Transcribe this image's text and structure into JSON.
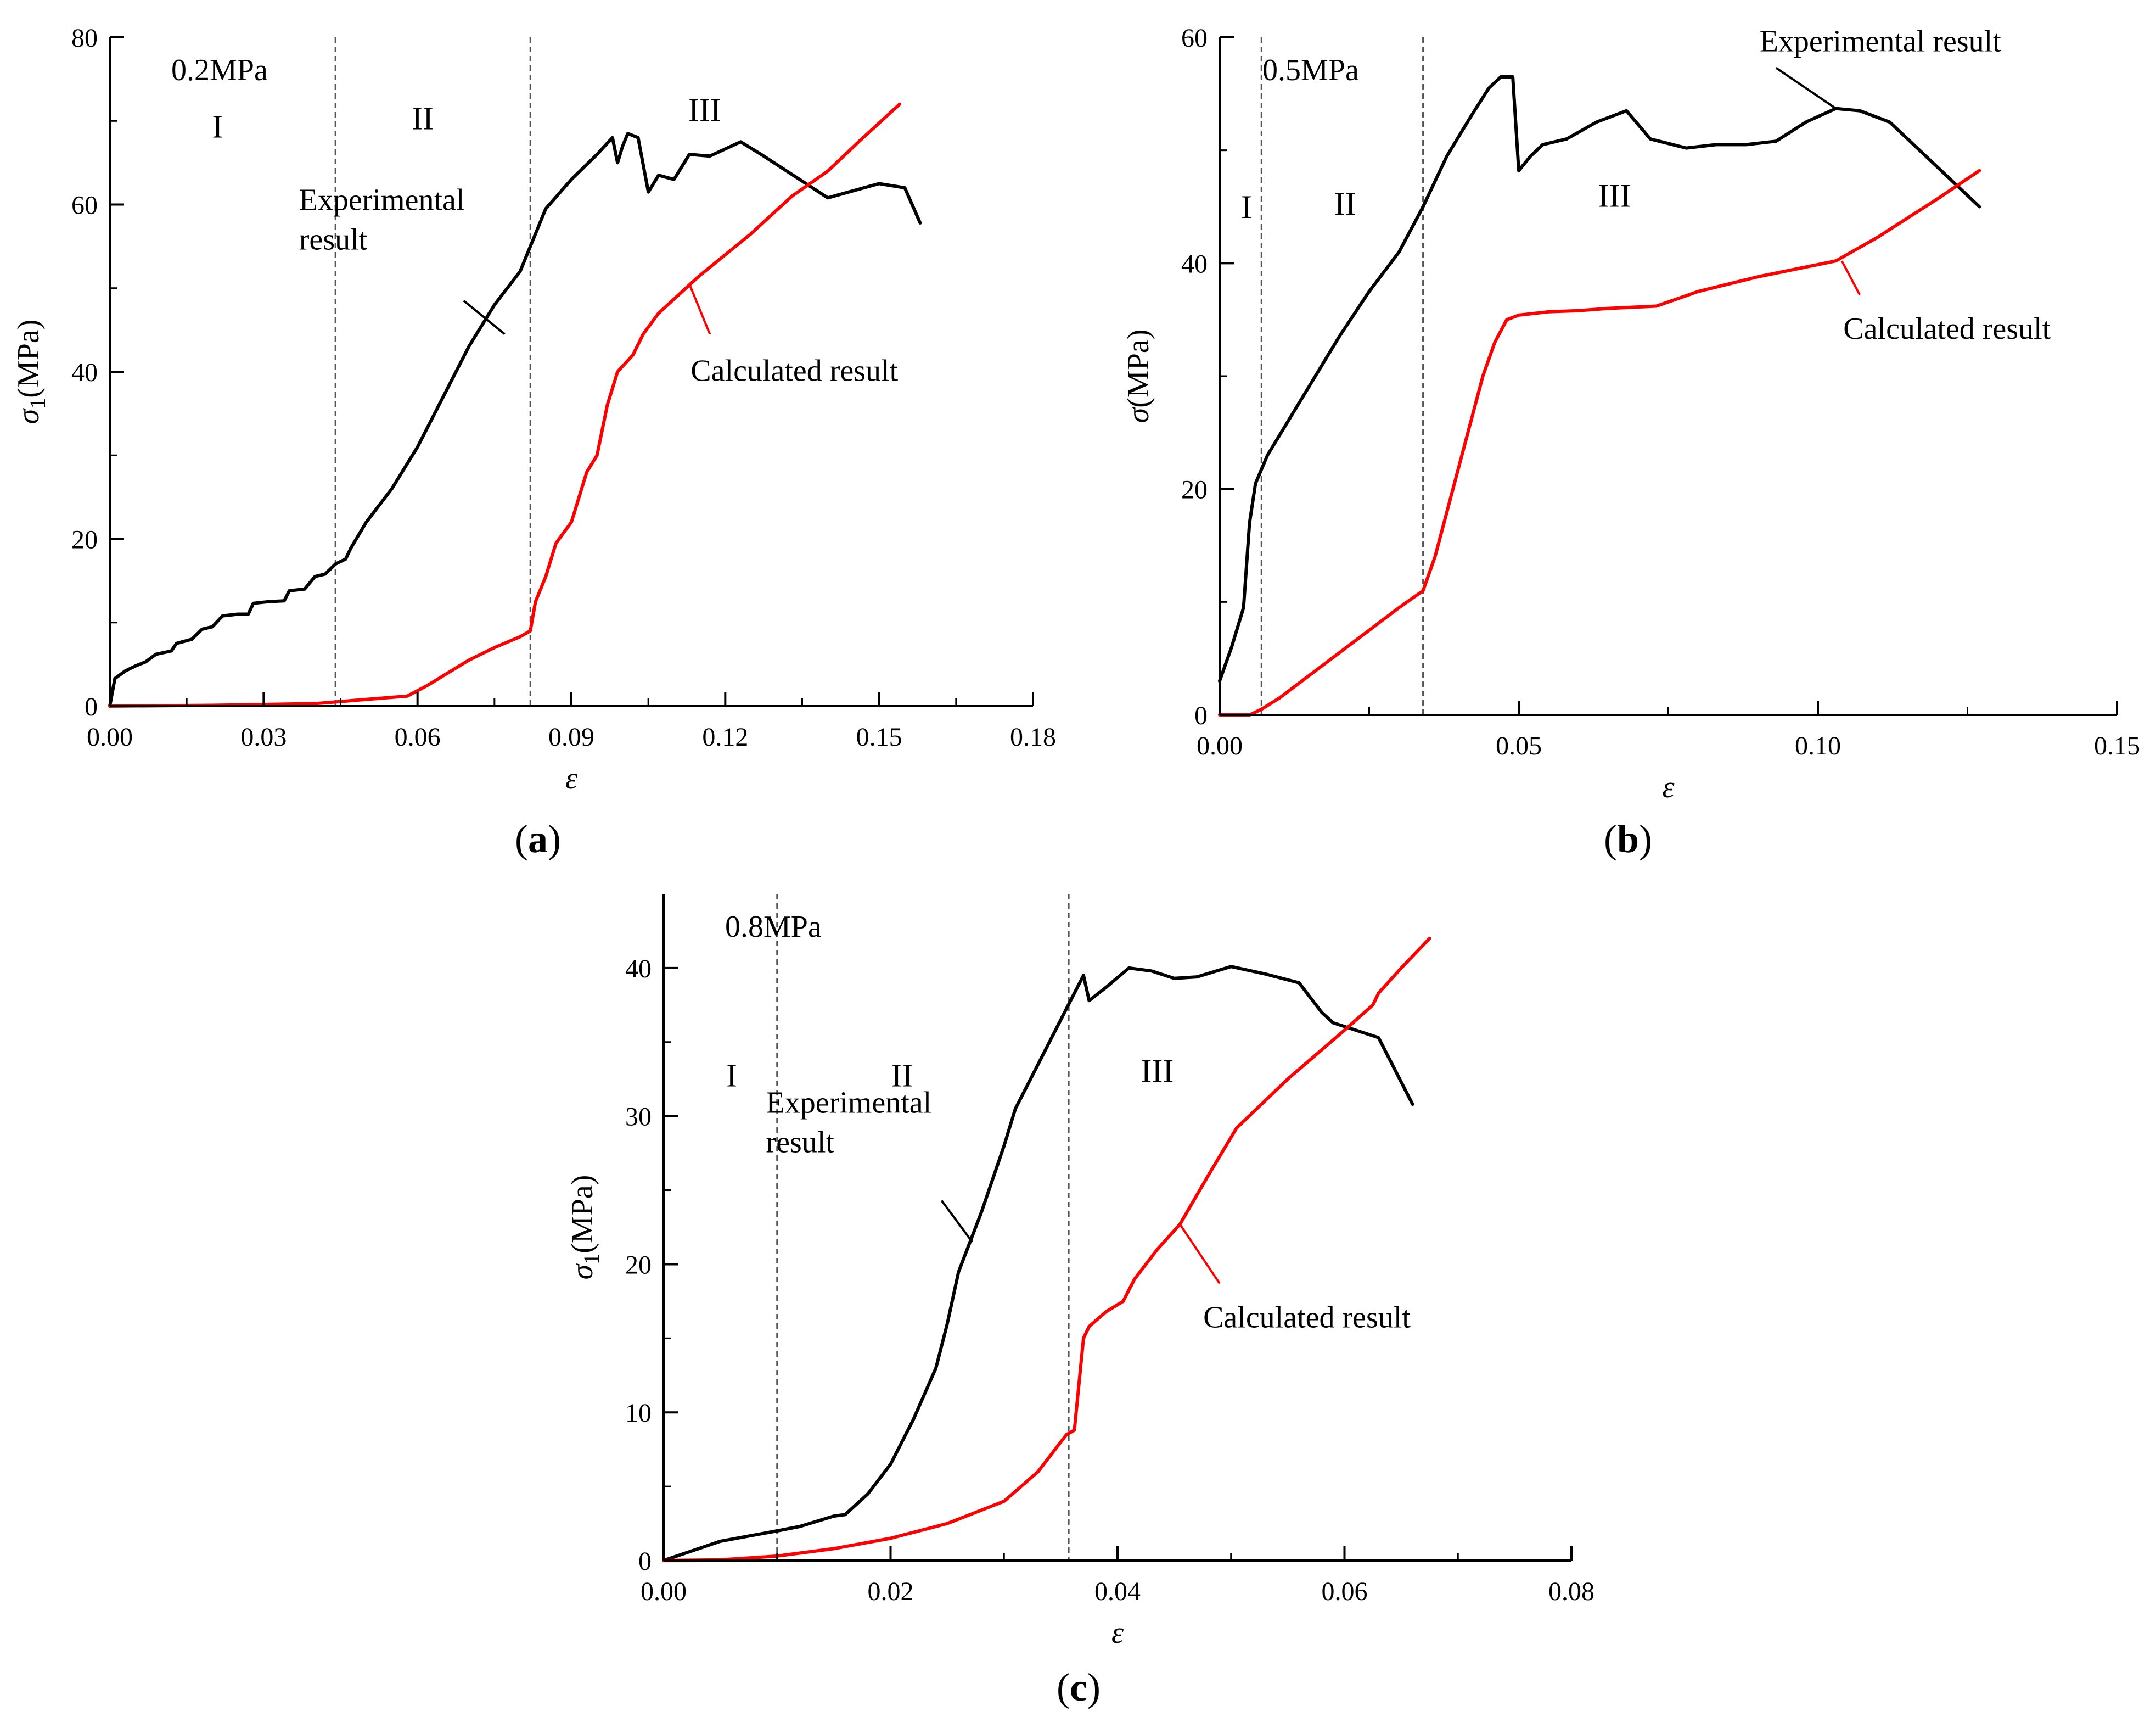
{
  "colors": {
    "experimental": "#000000",
    "calculated": "#ff0000",
    "axis": "#000000",
    "boundary": "#555555"
  },
  "chart_data": [
    {
      "id": "a",
      "type": "line",
      "caption_letter": "a",
      "pressure_label": "0.2MPa",
      "xlabel": "ε",
      "ylabel": {
        "symbol": "σ",
        "subscript": "1",
        "unit": "(MPa)"
      },
      "xlim": [
        0,
        0.18
      ],
      "ylim": [
        0,
        80
      ],
      "xticks": [
        0,
        0.03,
        0.06,
        0.09,
        0.12,
        0.15,
        0.18
      ],
      "xtick_labels": [
        "0.00",
        "0.03",
        "0.06",
        "0.09",
        "0.12",
        "0.15",
        "0.18"
      ],
      "yticks": [
        0,
        20,
        40,
        60,
        80
      ],
      "ytick_labels": [
        "0",
        "20",
        "40",
        "60",
        "80"
      ],
      "region_boundaries": [
        0.044,
        0.082
      ],
      "region_labels": [
        {
          "text": "I",
          "x": 0.021,
          "y": 68
        },
        {
          "text": "II",
          "x": 0.061,
          "y": 69
        },
        {
          "text": "III",
          "x": 0.116,
          "y": 70
        }
      ],
      "series": [
        {
          "name": "Experimental result",
          "color_key": "experimental",
          "points": [
            [
              0,
              0
            ],
            [
              0.001,
              3.3
            ],
            [
              0.003,
              4.2
            ],
            [
              0.005,
              4.8
            ],
            [
              0.007,
              5.3
            ],
            [
              0.009,
              6.2
            ],
            [
              0.012,
              6.6
            ],
            [
              0.013,
              7.5
            ],
            [
              0.016,
              8
            ],
            [
              0.018,
              9.2
            ],
            [
              0.02,
              9.5
            ],
            [
              0.022,
              10.8
            ],
            [
              0.025,
              11
            ],
            [
              0.027,
              11
            ],
            [
              0.028,
              12.3
            ],
            [
              0.031,
              12.5
            ],
            [
              0.034,
              12.6
            ],
            [
              0.035,
              13.8
            ],
            [
              0.038,
              14
            ],
            [
              0.04,
              15.5
            ],
            [
              0.042,
              15.8
            ],
            [
              0.044,
              17
            ],
            [
              0.046,
              17.6
            ],
            [
              0.047,
              18.9
            ],
            [
              0.05,
              22
            ],
            [
              0.055,
              26
            ],
            [
              0.06,
              31
            ],
            [
              0.065,
              37
            ],
            [
              0.07,
              43
            ],
            [
              0.075,
              48
            ],
            [
              0.08,
              52
            ],
            [
              0.085,
              59.5
            ],
            [
              0.09,
              63
            ],
            [
              0.095,
              66
            ],
            [
              0.098,
              68
            ],
            [
              0.099,
              65
            ],
            [
              0.1,
              67
            ],
            [
              0.101,
              68.5
            ],
            [
              0.103,
              68
            ],
            [
              0.105,
              61.5
            ],
            [
              0.107,
              63.5
            ],
            [
              0.11,
              63
            ],
            [
              0.113,
              66
            ],
            [
              0.117,
              65.8
            ],
            [
              0.123,
              67.5
            ],
            [
              0.127,
              66
            ],
            [
              0.132,
              64
            ],
            [
              0.14,
              60.8
            ],
            [
              0.15,
              62.5
            ],
            [
              0.155,
              62
            ],
            [
              0.158,
              57.8
            ]
          ]
        },
        {
          "name": "Calculated result",
          "color_key": "calculated",
          "points": [
            [
              0,
              0
            ],
            [
              0.02,
              0.1
            ],
            [
              0.04,
              0.3
            ],
            [
              0.05,
              0.8
            ],
            [
              0.058,
              1.2
            ],
            [
              0.062,
              2.5
            ],
            [
              0.066,
              4
            ],
            [
              0.07,
              5.5
            ],
            [
              0.075,
              7
            ],
            [
              0.08,
              8.3
            ],
            [
              0.082,
              9
            ],
            [
              0.083,
              12.5
            ],
            [
              0.085,
              15.5
            ],
            [
              0.087,
              19.5
            ],
            [
              0.09,
              22
            ],
            [
              0.093,
              28
            ],
            [
              0.095,
              30
            ],
            [
              0.097,
              36
            ],
            [
              0.099,
              40
            ],
            [
              0.102,
              42
            ],
            [
              0.104,
              44.5
            ],
            [
              0.107,
              47
            ],
            [
              0.115,
              51.5
            ],
            [
              0.125,
              56.5
            ],
            [
              0.133,
              61
            ],
            [
              0.14,
              64
            ],
            [
              0.146,
              67.5
            ],
            [
              0.154,
              72
            ]
          ]
        }
      ],
      "annotations": [
        {
          "lines": [
            "Experimental",
            "result"
          ],
          "target": [
            0.077,
            44.5
          ],
          "anchor": [
            0.069,
            48.5
          ]
        },
        {
          "lines": [
            "Calculated result"
          ],
          "target": [
            0.113,
            50.5
          ],
          "anchor": [
            0.117,
            44.5
          ]
        }
      ]
    },
    {
      "id": "b",
      "type": "line",
      "caption_letter": "b",
      "pressure_label": "0.5MPa",
      "xlabel": "ε",
      "ylabel": {
        "symbol": "σ",
        "subscript": "",
        "unit": "(MPa)"
      },
      "xlim": [
        0,
        0.15
      ],
      "ylim": [
        0,
        60
      ],
      "xticks": [
        0,
        0.05,
        0.1,
        0.15
      ],
      "xtick_labels": [
        "0.00",
        "0.05",
        "0.10",
        "0.15"
      ],
      "yticks": [
        0,
        20,
        40,
        60
      ],
      "ytick_labels": [
        "0",
        "20",
        "40",
        "60"
      ],
      "region_boundaries": [
        0.007,
        0.034
      ],
      "region_labels": [
        {
          "text": "I",
          "x": 0.0045,
          "y": 44
        },
        {
          "text": "II",
          "x": 0.021,
          "y": 44.3
        },
        {
          "text": "III",
          "x": 0.066,
          "y": 45
        }
      ],
      "series": [
        {
          "name": "Experimental result",
          "color_key": "experimental",
          "points": [
            [
              0,
              3
            ],
            [
              0.002,
              6
            ],
            [
              0.004,
              9.5
            ],
            [
              0.005,
              17
            ],
            [
              0.006,
              20.5
            ],
            [
              0.008,
              23
            ],
            [
              0.012,
              26.5
            ],
            [
              0.016,
              30
            ],
            [
              0.02,
              33.5
            ],
            [
              0.025,
              37.5
            ],
            [
              0.03,
              41
            ],
            [
              0.034,
              45
            ],
            [
              0.038,
              49.5
            ],
            [
              0.042,
              53
            ],
            [
              0.045,
              55.5
            ],
            [
              0.047,
              56.5
            ],
            [
              0.049,
              56.5
            ],
            [
              0.05,
              48.2
            ],
            [
              0.052,
              49.5
            ],
            [
              0.054,
              50.5
            ],
            [
              0.058,
              51
            ],
            [
              0.063,
              52.5
            ],
            [
              0.068,
              53.5
            ],
            [
              0.072,
              51
            ],
            [
              0.078,
              50.2
            ],
            [
              0.083,
              50.5
            ],
            [
              0.088,
              50.5
            ],
            [
              0.093,
              50.8
            ],
            [
              0.098,
              52.5
            ],
            [
              0.103,
              53.7
            ],
            [
              0.107,
              53.5
            ],
            [
              0.112,
              52.5
            ],
            [
              0.116,
              50.5
            ],
            [
              0.12,
              48.5
            ],
            [
              0.123,
              47
            ],
            [
              0.127,
              45
            ]
          ]
        },
        {
          "name": "Calculated result",
          "color_key": "calculated",
          "points": [
            [
              0,
              0
            ],
            [
              0.005,
              0
            ],
            [
              0.007,
              0.5
            ],
            [
              0.01,
              1.5
            ],
            [
              0.015,
              3.5
            ],
            [
              0.02,
              5.5
            ],
            [
              0.025,
              7.5
            ],
            [
              0.03,
              9.5
            ],
            [
              0.034,
              11
            ],
            [
              0.036,
              14
            ],
            [
              0.038,
              18
            ],
            [
              0.04,
              22
            ],
            [
              0.042,
              26
            ],
            [
              0.044,
              30
            ],
            [
              0.046,
              33
            ],
            [
              0.048,
              35
            ],
            [
              0.05,
              35.4
            ],
            [
              0.055,
              35.7
            ],
            [
              0.06,
              35.8
            ],
            [
              0.065,
              36
            ],
            [
              0.073,
              36.2
            ],
            [
              0.08,
              37.5
            ],
            [
              0.09,
              38.8
            ],
            [
              0.103,
              40.2
            ],
            [
              0.11,
              42.3
            ],
            [
              0.12,
              45.7
            ],
            [
              0.127,
              48.2
            ]
          ]
        }
      ],
      "annotations": [
        {
          "lines": [
            "Experimental result"
          ],
          "target": [
            0.103,
            53.7
          ],
          "anchor": [
            0.093,
            57.3
          ]
        },
        {
          "lines": [
            "Calculated result"
          ],
          "target": [
            0.104,
            40.2
          ],
          "anchor": [
            0.107,
            37.2
          ]
        }
      ]
    },
    {
      "id": "c",
      "type": "line",
      "caption_letter": "c",
      "pressure_label": "0.8MPa",
      "xlabel": "ε",
      "ylabel": {
        "symbol": "σ",
        "subscript": "1",
        "unit": "(MPa)"
      },
      "xlim": [
        0,
        0.08
      ],
      "ylim": [
        0,
        45
      ],
      "xticks": [
        0,
        0.02,
        0.04,
        0.06,
        0.08
      ],
      "xtick_labels": [
        "0.00",
        "0.02",
        "0.04",
        "0.06",
        "0.08"
      ],
      "yticks": [
        0,
        10,
        20,
        30,
        40
      ],
      "ytick_labels": [
        "0",
        "10",
        "20",
        "30",
        "40"
      ],
      "region_boundaries": [
        0.01,
        0.0357
      ],
      "region_labels": [
        {
          "text": "I",
          "x": 0.006,
          "y": 32
        },
        {
          "text": "II",
          "x": 0.021,
          "y": 32
        },
        {
          "text": "III",
          "x": 0.0435,
          "y": 32.3
        }
      ],
      "series": [
        {
          "name": "Experimental result",
          "color_key": "experimental",
          "points": [
            [
              0,
              0
            ],
            [
              0.005,
              1.3
            ],
            [
              0.01,
              2
            ],
            [
              0.012,
              2.3
            ],
            [
              0.015,
              3
            ],
            [
              0.016,
              3.1
            ],
            [
              0.018,
              4.5
            ],
            [
              0.02,
              6.5
            ],
            [
              0.022,
              9.5
            ],
            [
              0.024,
              13
            ],
            [
              0.025,
              16
            ],
            [
              0.026,
              19.5
            ],
            [
              0.027,
              21.5
            ],
            [
              0.028,
              23.5
            ],
            [
              0.03,
              28
            ],
            [
              0.031,
              30.5
            ],
            [
              0.033,
              33.5
            ],
            [
              0.035,
              36.5
            ],
            [
              0.036,
              38
            ],
            [
              0.037,
              39.5
            ],
            [
              0.0375,
              37.8
            ],
            [
              0.039,
              38.7
            ],
            [
              0.041,
              40
            ],
            [
              0.043,
              39.8
            ],
            [
              0.045,
              39.3
            ],
            [
              0.047,
              39.4
            ],
            [
              0.05,
              40.1
            ],
            [
              0.053,
              39.6
            ],
            [
              0.056,
              39
            ],
            [
              0.058,
              37
            ],
            [
              0.059,
              36.3
            ],
            [
              0.063,
              35.3
            ],
            [
              0.066,
              30.8
            ]
          ]
        },
        {
          "name": "Calculated result",
          "color_key": "calculated",
          "points": [
            [
              0,
              0
            ],
            [
              0.005,
              0.05
            ],
            [
              0.01,
              0.3
            ],
            [
              0.015,
              0.8
            ],
            [
              0.02,
              1.5
            ],
            [
              0.025,
              2.5
            ],
            [
              0.03,
              4
            ],
            [
              0.033,
              6
            ],
            [
              0.0355,
              8.5
            ],
            [
              0.0362,
              8.8
            ],
            [
              0.037,
              15
            ],
            [
              0.0375,
              15.8
            ],
            [
              0.039,
              16.8
            ],
            [
              0.0405,
              17.5
            ],
            [
              0.0415,
              19
            ],
            [
              0.0435,
              21
            ],
            [
              0.0455,
              22.7
            ],
            [
              0.048,
              26
            ],
            [
              0.0505,
              29.2
            ],
            [
              0.055,
              32.5
            ],
            [
              0.06,
              35.8
            ],
            [
              0.0625,
              37.5
            ],
            [
              0.063,
              38.3
            ],
            [
              0.065,
              40
            ],
            [
              0.0675,
              42
            ]
          ]
        }
      ],
      "annotations": [
        {
          "lines": [
            "Experimental",
            "result"
          ],
          "target": [
            0.0272,
            21.5
          ],
          "anchor": [
            0.0245,
            24.3
          ]
        },
        {
          "lines": [
            "Calculated result"
          ],
          "target": [
            0.0455,
            22.7
          ],
          "anchor": [
            0.049,
            18.7
          ]
        }
      ]
    }
  ]
}
